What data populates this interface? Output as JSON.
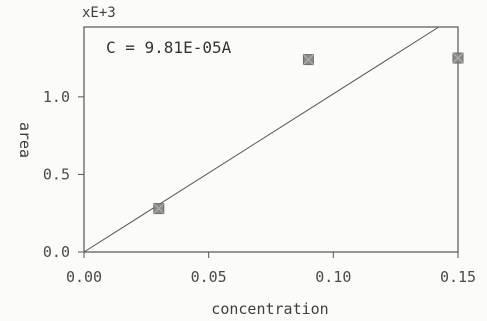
{
  "chart_data": {
    "type": "scatter",
    "title": "",
    "equation": "C = 9.81E-05A",
    "y_multiplier_label": "xE+3",
    "xlabel": "concentration",
    "ylabel": "area",
    "xlim": [
      0.0,
      0.15
    ],
    "ylim": [
      0.0,
      1.45
    ],
    "x_ticks": [
      0.0,
      0.05,
      0.1,
      0.15
    ],
    "x_tick_labels": [
      "0.00",
      "0.05",
      "0.10",
      "0.15"
    ],
    "y_ticks": [
      0.0,
      0.5,
      1.0
    ],
    "y_tick_labels": [
      "0.0",
      "0.5",
      "1.0"
    ],
    "grid": false,
    "series": [
      {
        "points": [
          {
            "x": 0.03,
            "y": 0.28
          },
          {
            "x": 0.09,
            "y": 1.24
          },
          {
            "x": 0.15,
            "y": 1.25
          }
        ]
      }
    ],
    "fit_line": {
      "slope": 10.19,
      "intercept": 0.0
    },
    "colors": {
      "marker": "#8a8a8a",
      "line": "#555555",
      "axes": "#555555"
    }
  }
}
